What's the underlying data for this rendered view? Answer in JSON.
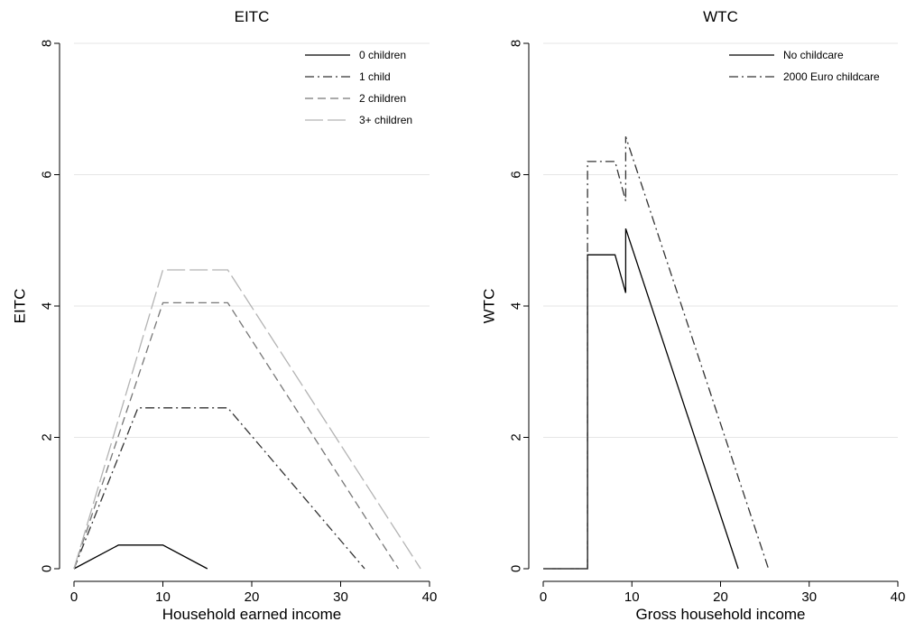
{
  "chart_data": [
    {
      "type": "line",
      "title": "EITC",
      "xlabel": "Household earned income",
      "ylabel": "EITC",
      "xlim": [
        0,
        40
      ],
      "ylim": [
        0,
        8
      ],
      "xticks": [
        0,
        10,
        20,
        30,
        40
      ],
      "yticks": [
        0,
        2,
        4,
        6,
        8
      ],
      "grid": "horizontal",
      "legend_position": "top-right",
      "series": [
        {
          "name": "0 children",
          "style": "solid",
          "color": "#000000",
          "x": [
            0,
            5,
            10,
            15
          ],
          "y": [
            0,
            0.36,
            0.36,
            0
          ]
        },
        {
          "name": "1 child",
          "style": "dashdot",
          "color": "#333333",
          "x": [
            0,
            7.2,
            17.3,
            32.7
          ],
          "y": [
            0,
            2.45,
            2.45,
            0
          ]
        },
        {
          "name": "2 children",
          "style": "dash",
          "color": "#777777",
          "x": [
            0,
            10,
            17.3,
            36.5
          ],
          "y": [
            0,
            4.05,
            4.05,
            0
          ]
        },
        {
          "name": "3+ children",
          "style": "longdash",
          "color": "#b3b3b3",
          "x": [
            0,
            10,
            17.3,
            39
          ],
          "y": [
            0,
            4.55,
            4.55,
            0
          ]
        }
      ]
    },
    {
      "type": "line",
      "title": "WTC",
      "xlabel": "Gross household income",
      "ylabel": "WTC",
      "xlim": [
        0,
        40
      ],
      "ylim": [
        0,
        8
      ],
      "xticks": [
        0,
        10,
        20,
        30,
        40
      ],
      "yticks": [
        0,
        2,
        4,
        6,
        8
      ],
      "grid": "horizontal",
      "legend_position": "top-right",
      "series": [
        {
          "name": "No childcare",
          "style": "solid",
          "color": "#000000",
          "x": [
            0,
            5,
            5,
            8.1,
            9.3,
            9.3,
            22
          ],
          "y": [
            0,
            0,
            4.78,
            4.78,
            4.2,
            5.18,
            0
          ]
        },
        {
          "name": "2000 Euro childcare",
          "style": "dashdot",
          "color": "#333333",
          "x": [
            0,
            5,
            5,
            8.1,
            9.3,
            9.3,
            25.4
          ],
          "y": [
            0,
            0,
            6.2,
            6.2,
            5.6,
            6.58,
            0
          ]
        }
      ]
    }
  ]
}
